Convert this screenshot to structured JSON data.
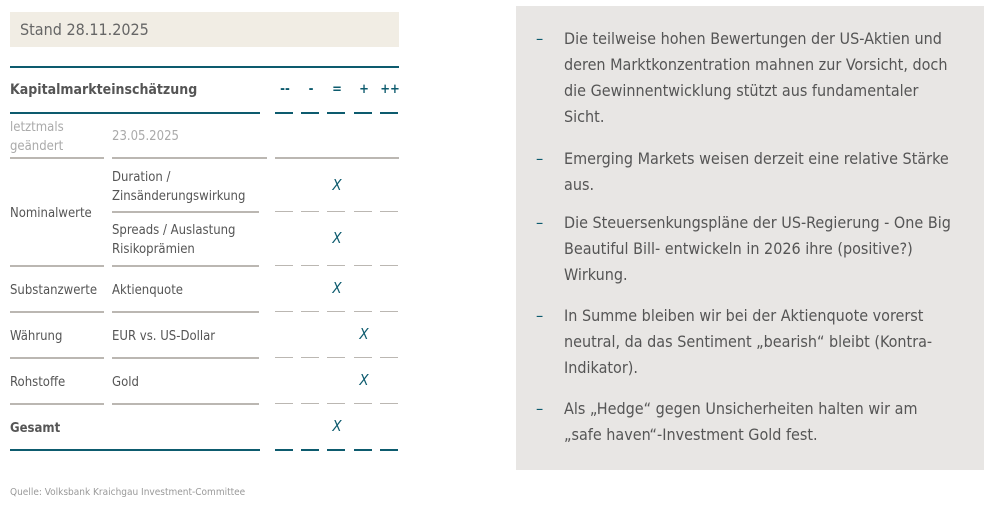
{
  "stand": "Stand 28.11.2025",
  "table": {
    "title": "Kapitalmarkteinschätzung",
    "scale": [
      "--",
      "-",
      "=",
      "+",
      "++"
    ],
    "last_changed_label": "letztmals geändert",
    "last_changed_value": "23.05.2025",
    "rows": [
      {
        "category": "Nominalwerte",
        "item": "Duration / Zinsänderungswirkung",
        "mark": "="
      },
      {
        "category": "",
        "item": "Spreads / Auslastung Risikoprämien",
        "mark": "="
      },
      {
        "category": "Substanzwerte",
        "item": "Aktienquote",
        "mark": "="
      },
      {
        "category": "Währung",
        "item": "EUR vs. US-Dollar",
        "mark": "+"
      },
      {
        "category": "Rohstoffe",
        "item": "Gold",
        "mark": "+"
      },
      {
        "category": "Gesamt",
        "item": "",
        "mark": "="
      }
    ],
    "mark_symbol": "X"
  },
  "source": "Quelle:  Volksbank Kraichgau Investment-Committee",
  "bullets": [
    "Die teilweise hohen Bewertungen der US-Aktien und deren Marktkonzentration mahnen zur Vorsicht, doch die Gewinnentwicklung stützt aus fundamentaler Sicht.",
    "Emerging Markets weisen derzeit eine relative Stärke aus.",
    "Die Steuersenkungspläne der US-Regierung - One Big Beautiful Bill- entwickeln in 2026 ihre (positive?) Wirkung.",
    "In Summe bleiben wir bei der Aktienquote vorerst neutral, da das Sentiment „bearish“ bleibt (Kontra-Indikator).",
    "Als „Hedge“ gegen Unsicherheiten halten wir am „safe haven“-Investment Gold fest."
  ],
  "bullet_dash": "–",
  "colors": {
    "accent": "#0d5b6e",
    "panel": "#e8e6e4",
    "stand_bg": "#f1ede4"
  }
}
